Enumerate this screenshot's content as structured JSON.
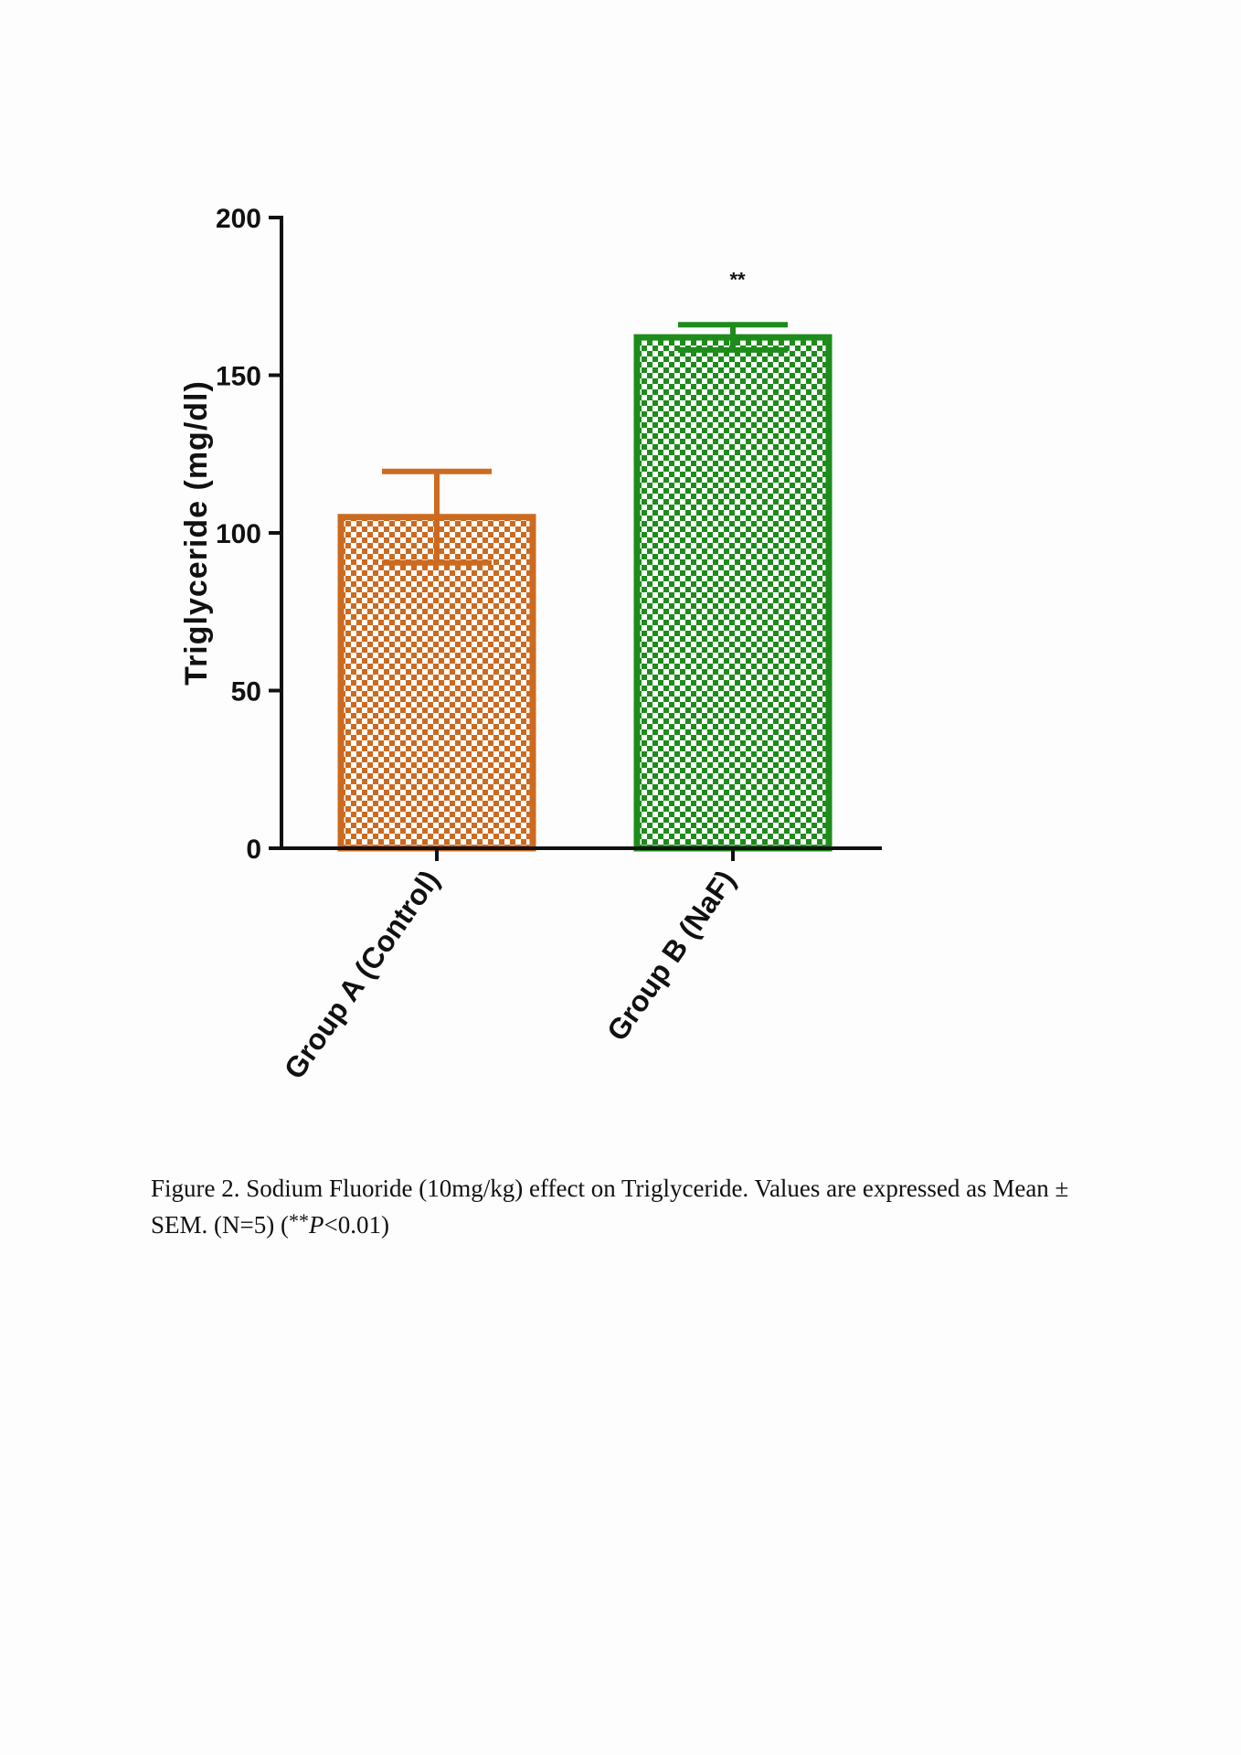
{
  "chart_data": {
    "type": "bar",
    "categories": [
      "Group A (Control)",
      "Group B (NaF)"
    ],
    "values": [
      105,
      162
    ],
    "errors": [
      14.5,
      4
    ],
    "colors": [
      "#cc6a1f",
      "#1d8c1a"
    ],
    "fill_pattern": "checkerboard",
    "ylabel": "Triglyceride (mg/dl)",
    "ylim": [
      0,
      200
    ],
    "yticks": [
      0,
      50,
      100,
      150,
      200
    ],
    "annotations": [
      {
        "category": "Group B (NaF)",
        "text": "**"
      }
    ]
  },
  "caption": {
    "line1": "Figure 2. Sodium Fluoride (10mg/kg) effect on Triglyceride. Values are expressed as Mean ±",
    "line2_prefix": "SEM. (N=5) (",
    "line2_stars": "**",
    "line2_p": "P",
    "line2_suffix": "<0.01)"
  }
}
